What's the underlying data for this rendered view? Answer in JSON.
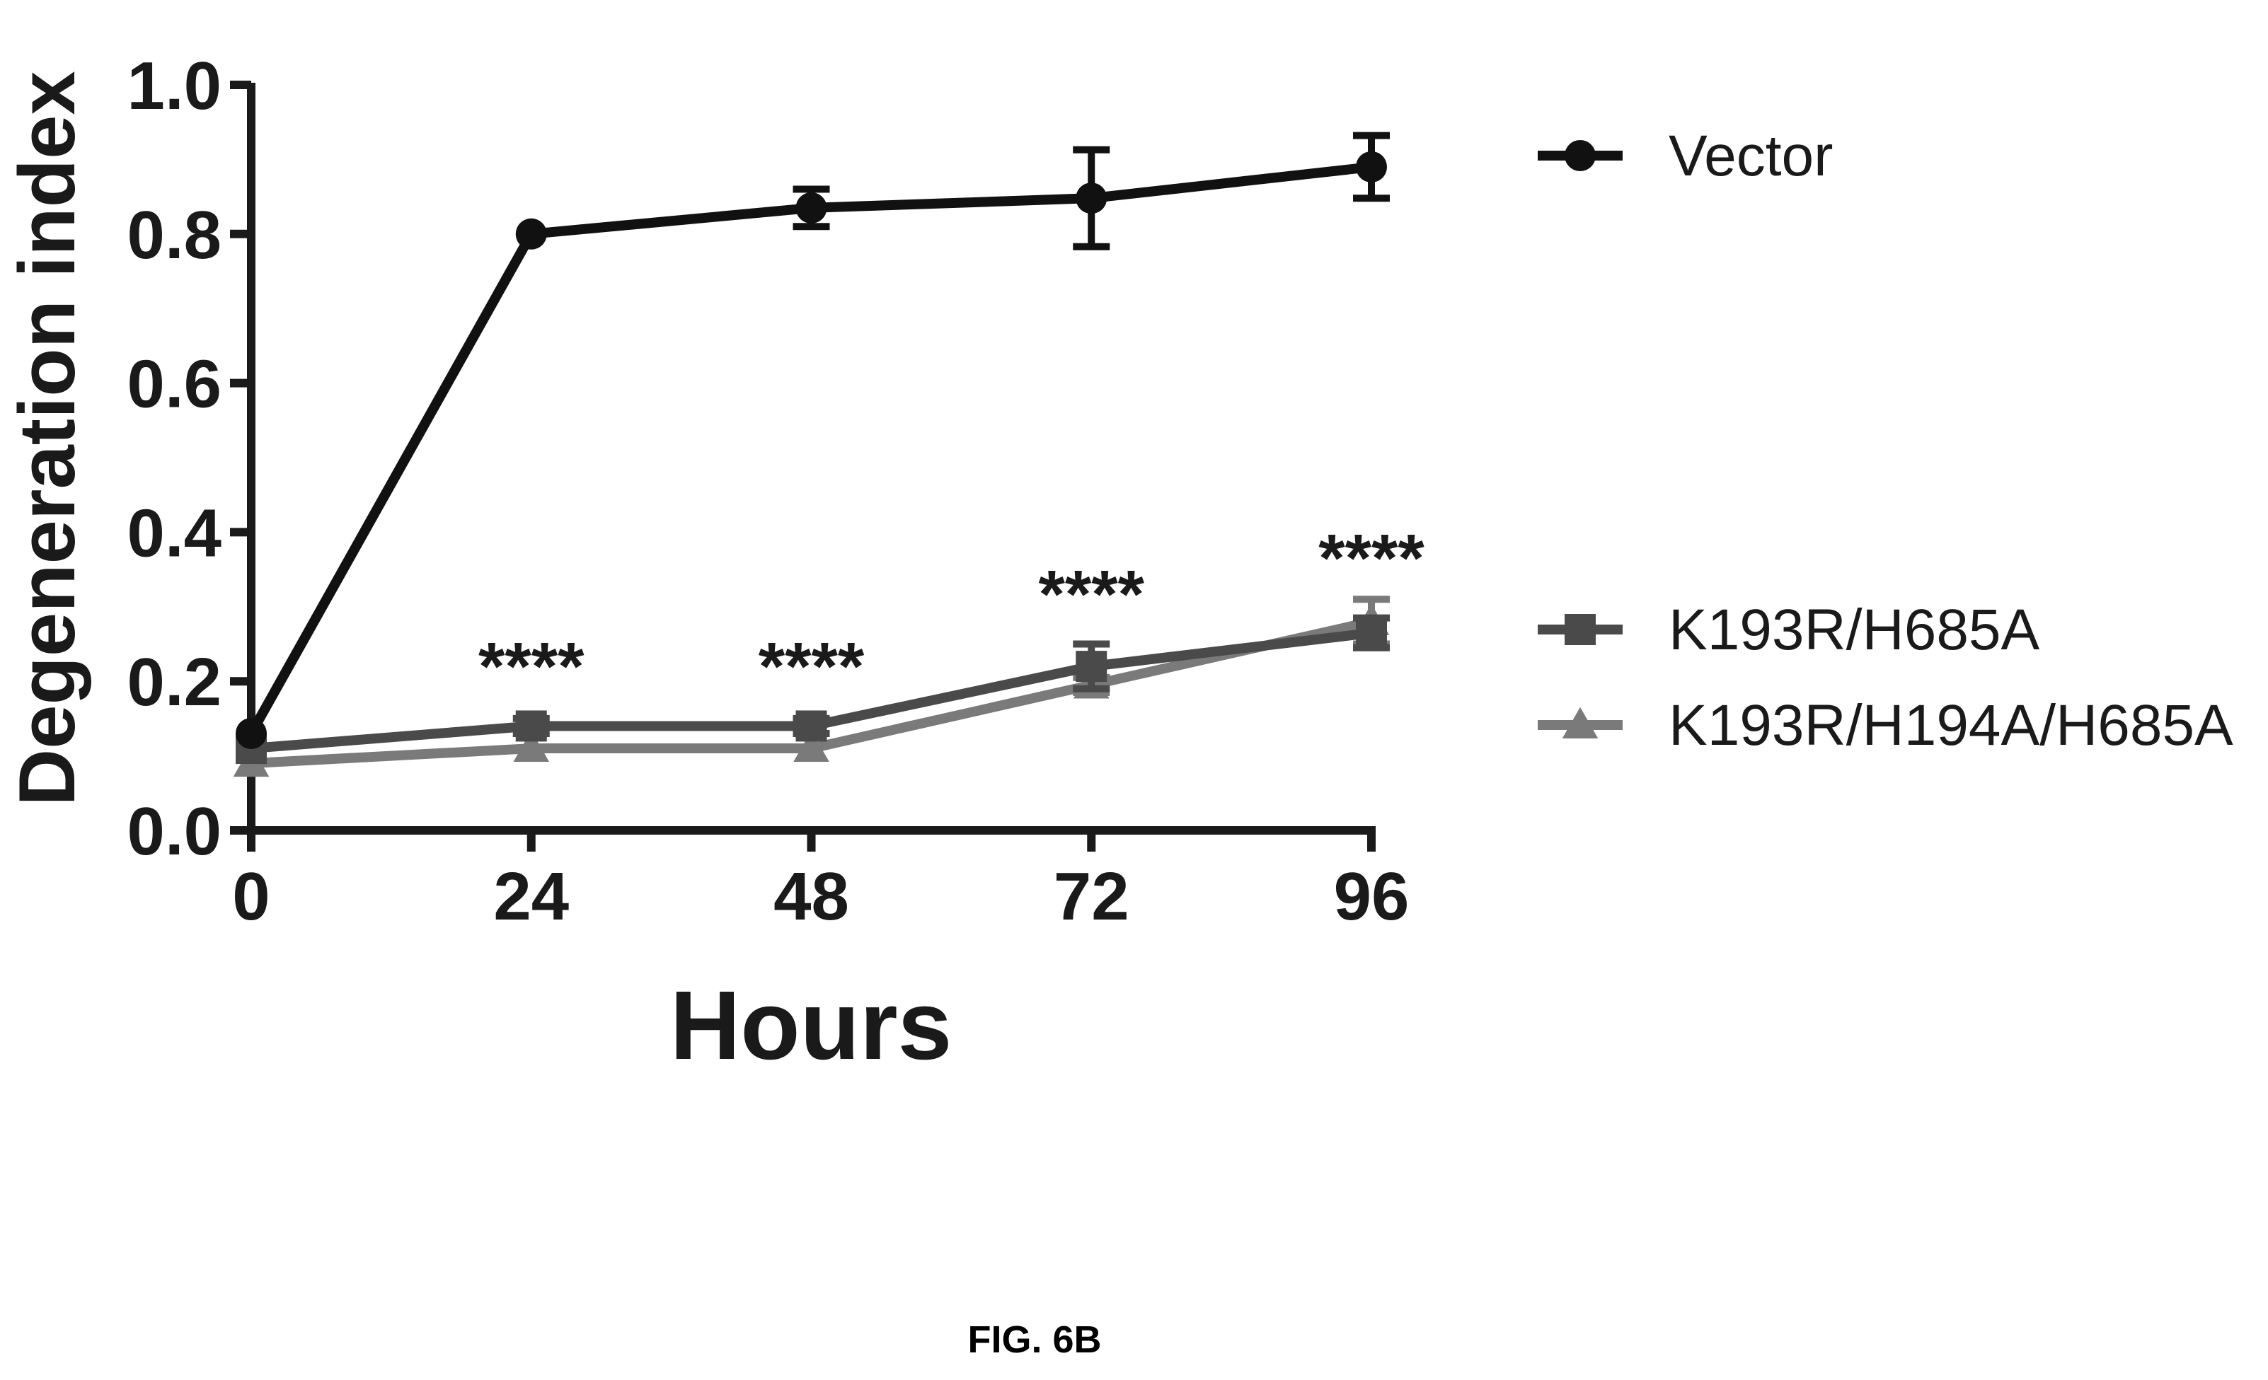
{
  "chart_data": {
    "type": "line",
    "title": "",
    "xlabel": "Hours",
    "ylabel": "Degeneration index",
    "x": [
      0,
      24,
      48,
      72,
      96
    ],
    "x_ticks": [
      "0",
      "24",
      "48",
      "72",
      "96"
    ],
    "y_ticks": [
      "0.0",
      "0.2",
      "0.4",
      "0.6",
      "0.8",
      "1.0"
    ],
    "xlim": [
      0,
      96
    ],
    "ylim": [
      0,
      1.0
    ],
    "grid": false,
    "legend_position": "right",
    "series": [
      {
        "name": "Vector",
        "marker": "circle",
        "color": "#111111",
        "values": [
          0.13,
          0.8,
          0.835,
          0.848,
          0.89
        ],
        "errors": [
          0.0,
          0.0,
          0.025,
          0.065,
          0.042
        ]
      },
      {
        "name": "K193R/H685A",
        "marker": "square",
        "color": "#4a4a4a",
        "values": [
          0.11,
          0.14,
          0.14,
          0.22,
          0.265
        ],
        "errors": [
          0.0,
          0.01,
          0.01,
          0.03,
          0.02
        ]
      },
      {
        "name": "K193R/H194A/H685A",
        "marker": "triangle",
        "color": "#7a7a7a",
        "values": [
          0.09,
          0.11,
          0.11,
          0.195,
          0.28
        ],
        "errors": [
          0.0,
          0.0,
          0.0,
          0.01,
          0.03
        ]
      }
    ],
    "annotations": [
      {
        "x": 24,
        "text": "****"
      },
      {
        "x": 48,
        "text": "****"
      },
      {
        "x": 72,
        "text": "****"
      },
      {
        "x": 96,
        "text": "****"
      }
    ]
  },
  "caption": "FIG. 6B"
}
